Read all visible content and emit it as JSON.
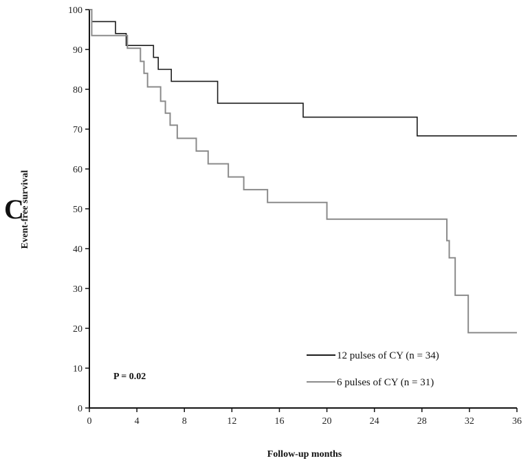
{
  "chart_data": {
    "type": "line",
    "panel_label": "C",
    "xlabel": "Follow-up months",
    "ylabel": "Event-free survival",
    "xlim": [
      0,
      36
    ],
    "ylim": [
      0,
      100
    ],
    "x_ticks": [
      0,
      4,
      8,
      12,
      16,
      20,
      24,
      28,
      32,
      36
    ],
    "y_ticks": [
      0,
      10,
      20,
      30,
      40,
      50,
      60,
      70,
      80,
      90,
      100
    ],
    "annotation": "P = 0.02",
    "legend_position": "bottom-right",
    "series": [
      {
        "name": "12 pulses of CY (n = 34)",
        "color": "#1a1a1a",
        "steps": [
          [
            0,
            100
          ],
          [
            0.2,
            97
          ],
          [
            2.2,
            94
          ],
          [
            3.1,
            91
          ],
          [
            5.4,
            88
          ],
          [
            5.8,
            85
          ],
          [
            6.9,
            82
          ],
          [
            10.8,
            76.5
          ],
          [
            18,
            73
          ],
          [
            27.6,
            68.3
          ],
          [
            36,
            68.3
          ]
        ]
      },
      {
        "name": "6 pulses of CY (n = 31)",
        "color": "#8a8a8a",
        "steps": [
          [
            0,
            100
          ],
          [
            0.2,
            93.5
          ],
          [
            3.2,
            90.3
          ],
          [
            4.3,
            87
          ],
          [
            4.6,
            84
          ],
          [
            4.9,
            80.6
          ],
          [
            6,
            77
          ],
          [
            6.4,
            74
          ],
          [
            6.8,
            71
          ],
          [
            7.4,
            67.7
          ],
          [
            9,
            64.5
          ],
          [
            10,
            61.3
          ],
          [
            11.7,
            58
          ],
          [
            13,
            54.8
          ],
          [
            15,
            51.6
          ],
          [
            20,
            47.4
          ],
          [
            30.1,
            42
          ],
          [
            30.3,
            37.7
          ],
          [
            30.8,
            28.3
          ],
          [
            31.9,
            18.9
          ],
          [
            36,
            18.9
          ]
        ]
      }
    ]
  }
}
